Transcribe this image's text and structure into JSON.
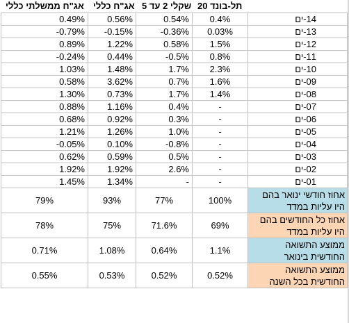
{
  "headers": {
    "gov": "אג\"ח ממשלתי כללי",
    "general": "אג\"ח כללי",
    "shekel": "שקלי 2 עד 5",
    "telbond": "תל-בונד 20"
  },
  "rows": [
    {
      "label": "14-ים",
      "gov": "0.49%",
      "general": "0.56%",
      "shekel": "0.54%",
      "telbond": "0.4%"
    },
    {
      "label": "13-ים",
      "gov": "-0.79%",
      "general": "-0.15%",
      "shekel": "-0.36%",
      "telbond": "0.03%"
    },
    {
      "label": "12-ים",
      "gov": "0.89%",
      "general": "1.22%",
      "shekel": "0.58%",
      "telbond": "1.5%"
    },
    {
      "label": "11-ים",
      "gov": "-0.24%",
      "general": "0.44%",
      "shekel": "-0.5%",
      "telbond": "0.8%"
    },
    {
      "label": "10-ים",
      "gov": "1.03%",
      "general": "1.48%",
      "shekel": "1.7%",
      "telbond": "2.3%"
    },
    {
      "label": "09-ים",
      "gov": "0.58%",
      "general": "3.62%",
      "shekel": "0.7%",
      "telbond": "1.6%"
    },
    {
      "label": "08-ים",
      "gov": "1.30%",
      "general": "0.73%",
      "shekel": "1.7%",
      "telbond": "1.4%"
    },
    {
      "label": "07-ים",
      "gov": "0.88%",
      "general": "1.16%",
      "shekel": "0.4%",
      "telbond": "-"
    },
    {
      "label": "06-ים",
      "gov": "0.68%",
      "general": "0.92%",
      "shekel": "0.3%",
      "telbond": "-"
    },
    {
      "label": "05-ים",
      "gov": "1.21%",
      "general": "1.26%",
      "shekel": "1.0%",
      "telbond": "-"
    },
    {
      "label": "04-ים",
      "gov": "-0.05%",
      "general": "0.10%",
      "shekel": "-0.8%",
      "telbond": "-"
    },
    {
      "label": "03-ים",
      "gov": "0.62%",
      "general": "0.59%",
      "shekel": "0.5%",
      "telbond": "-"
    },
    {
      "label": "02-ים",
      "gov": "1.92%",
      "general": "1.92%",
      "shekel": "2.6%",
      "telbond": "-"
    },
    {
      "label": "01-ים",
      "gov": "1.45%",
      "general": "1.34%",
      "shekel": "-",
      "telbond": "-"
    }
  ],
  "summary": [
    {
      "label": "אחוז חודשי ינואר בהם היו עליות במדד",
      "gov": "79%",
      "general": "93%",
      "shekel": "77%",
      "telbond": "100%",
      "color": "#b7dde8"
    },
    {
      "label": "אחוז כל החודשים בהם היו עליות במדד",
      "gov": "78%",
      "general": "75%",
      "shekel": "71.6%",
      "telbond": "69%",
      "color": "#fcd5b4"
    },
    {
      "label": "ממוצע התשואה החודשית בינואר",
      "gov": "0.71%",
      "general": "1.08%",
      "shekel": "0.64%",
      "telbond": "1.1%",
      "color": "#b7dde8"
    },
    {
      "label": "ממוצע התשואה החודשית בכל השנה",
      "gov": "0.55%",
      "general": "0.53%",
      "shekel": "0.52%",
      "telbond": "0.52%",
      "color": "#fcd5b4"
    }
  ]
}
